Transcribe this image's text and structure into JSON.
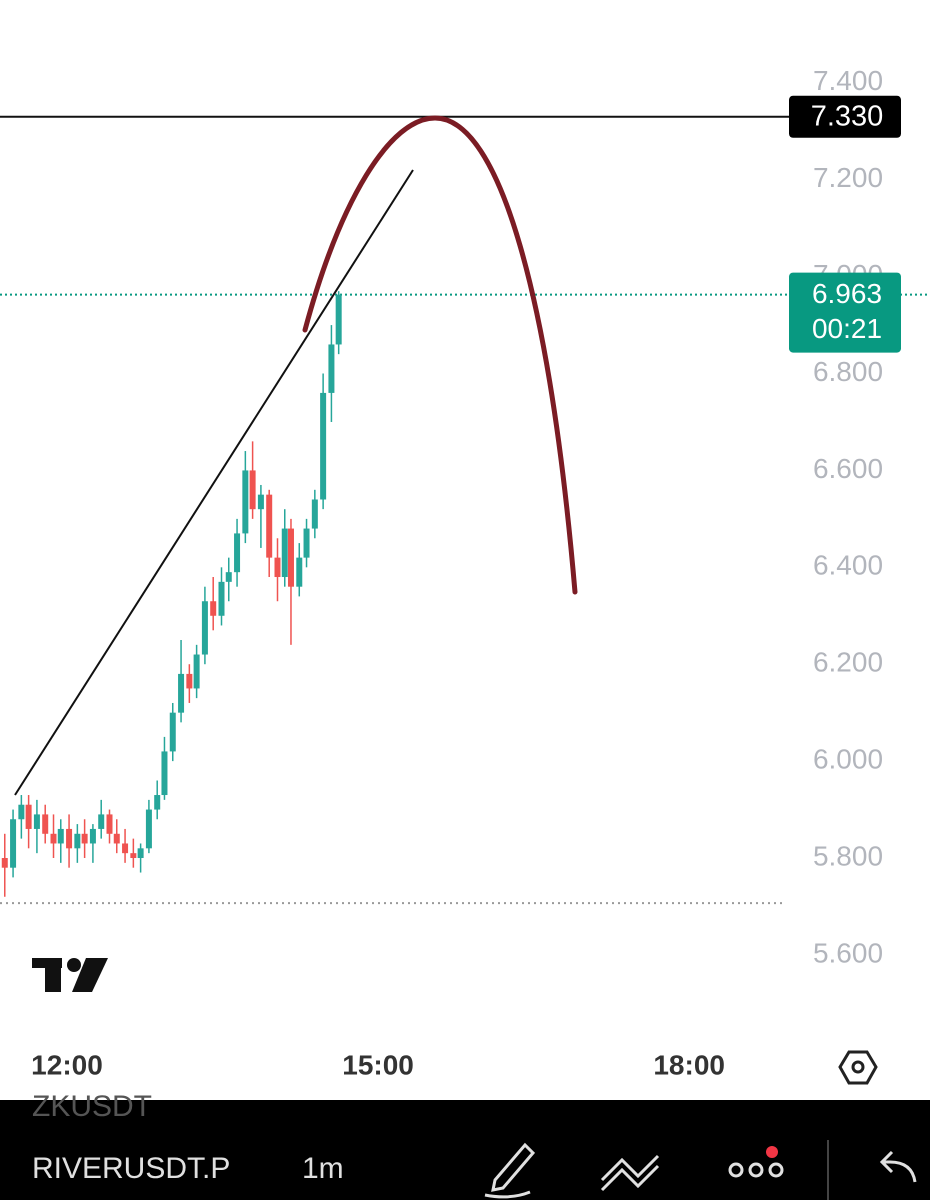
{
  "chart_data": {
    "type": "candlestick",
    "x": [
      11.4,
      11.48,
      11.56,
      11.63,
      11.71,
      11.79,
      11.87,
      11.94,
      12.02,
      12.1,
      12.17,
      12.25,
      12.33,
      12.41,
      12.48,
      12.56,
      12.64,
      12.71,
      12.79,
      12.87,
      12.94,
      13.02,
      13.1,
      13.18,
      13.25,
      13.33,
      13.41,
      13.49,
      13.56,
      13.64,
      13.72,
      13.79,
      13.87,
      13.95,
      14.03,
      14.1,
      14.16,
      14.24,
      14.31,
      14.39,
      14.47,
      14.55,
      14.62
    ],
    "open": [
      5.8,
      5.78,
      5.88,
      5.91,
      5.86,
      5.89,
      5.85,
      5.83,
      5.86,
      5.82,
      5.85,
      5.83,
      5.86,
      5.89,
      5.85,
      5.83,
      5.81,
      5.8,
      5.82,
      5.9,
      5.93,
      6.02,
      6.1,
      6.18,
      6.15,
      6.22,
      6.33,
      6.3,
      6.37,
      6.39,
      6.47,
      6.6,
      6.52,
      6.55,
      6.42,
      6.38,
      6.48,
      6.36,
      6.42,
      6.48,
      6.54,
      6.76,
      6.86
    ],
    "high": [
      5.85,
      5.9,
      5.93,
      5.93,
      5.92,
      5.91,
      5.89,
      5.88,
      5.89,
      5.87,
      5.88,
      5.87,
      5.92,
      5.9,
      5.88,
      5.86,
      5.84,
      5.83,
      5.92,
      5.96,
      6.05,
      6.12,
      6.25,
      6.2,
      6.24,
      6.36,
      6.38,
      6.4,
      6.42,
      6.5,
      6.64,
      6.66,
      6.57,
      6.56,
      6.46,
      6.52,
      6.5,
      6.45,
      6.5,
      6.56,
      6.8,
      6.9,
      6.97
    ],
    "low": [
      5.72,
      5.76,
      5.84,
      5.82,
      5.81,
      5.83,
      5.8,
      5.79,
      5.78,
      5.79,
      5.8,
      5.79,
      5.84,
      5.83,
      5.81,
      5.79,
      5.78,
      5.77,
      5.81,
      5.88,
      5.92,
      6.0,
      6.08,
      6.12,
      6.13,
      6.2,
      6.27,
      6.28,
      6.33,
      6.36,
      6.45,
      6.5,
      6.44,
      6.38,
      6.33,
      6.36,
      6.24,
      6.34,
      6.4,
      6.46,
      6.52,
      6.7,
      6.84
    ],
    "close": [
      5.78,
      5.88,
      5.91,
      5.86,
      5.89,
      5.85,
      5.83,
      5.86,
      5.82,
      5.85,
      5.83,
      5.86,
      5.89,
      5.85,
      5.83,
      5.81,
      5.8,
      5.82,
      5.9,
      5.93,
      6.02,
      6.1,
      6.18,
      6.15,
      6.22,
      6.33,
      6.3,
      6.37,
      6.39,
      6.47,
      6.6,
      6.52,
      6.55,
      6.42,
      6.38,
      6.48,
      6.36,
      6.42,
      6.48,
      6.54,
      6.76,
      6.86,
      6.963
    ],
    "up_color": "#26a69a",
    "down_color": "#ef5350",
    "xlim": [
      11.354,
      18.924
    ],
    "xticks": [
      {
        "value": 12,
        "label": "12:00"
      },
      {
        "value": 15,
        "label": "15:00"
      },
      {
        "value": 18,
        "label": "18:00"
      }
    ],
    "ylim": [
      5.445,
      7.571
    ],
    "yticks": [
      {
        "value": 5.6,
        "label": "5.600"
      },
      {
        "value": 5.8,
        "label": "5.800"
      },
      {
        "value": 6.0,
        "label": "6.000"
      },
      {
        "value": 6.2,
        "label": "6.200"
      },
      {
        "value": 6.4,
        "label": "6.400"
      },
      {
        "value": 6.6,
        "label": "6.600"
      },
      {
        "value": 6.8,
        "label": "6.800"
      },
      {
        "value": 7.0,
        "label": "7.000"
      },
      {
        "value": 7.2,
        "label": "7.200"
      },
      {
        "value": 7.4,
        "label": "7.400"
      }
    ],
    "horizontal_line": {
      "value": 7.33,
      "label": "7.330"
    },
    "last_price": {
      "value": 6.963,
      "label": "6.963",
      "countdown": "00:21",
      "color": "#089981"
    },
    "low_line": 5.707
  },
  "toolbar": {
    "background_symbol": "ZKUSDT",
    "symbol": "RIVERUSDT.P",
    "interval": "1m"
  }
}
